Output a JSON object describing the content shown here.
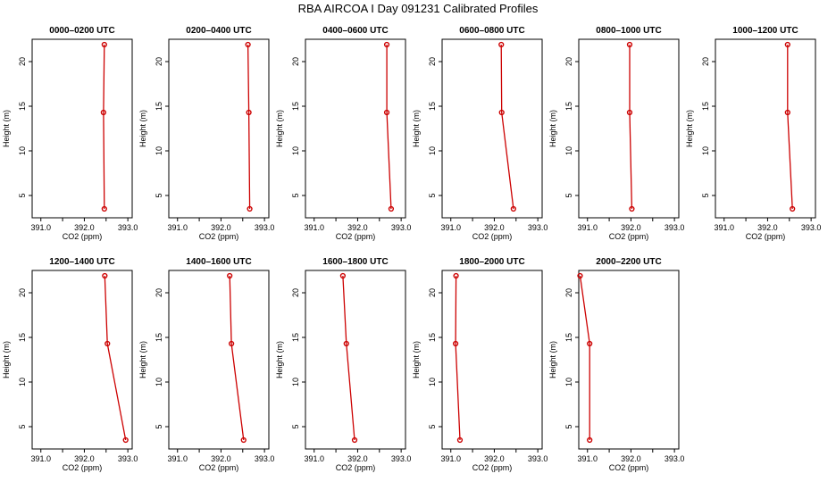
{
  "title": "RBA AIRCOA I  Day 091231  Calibrated Profiles",
  "chart_data": [
    {
      "type": "line",
      "title": "0000–0200 UTC",
      "xlabel": "CO2 (ppm)",
      "ylabel": "Height (m)",
      "x": [
        392.46,
        392.44,
        392.46
      ],
      "y": [
        3.5,
        14.3,
        21.9
      ],
      "xlim": [
        390.8,
        393.1
      ],
      "ylim": [
        2.5,
        22.5
      ],
      "xticks": [
        "391.0",
        "392.0",
        "393.0"
      ],
      "yticks": [
        "5",
        "10",
        "15",
        "20"
      ]
    },
    {
      "type": "line",
      "title": "0200–0400 UTC",
      "xlabel": "CO2 (ppm)",
      "ylabel": "Height (m)",
      "x": [
        392.66,
        392.64,
        392.62
      ],
      "y": [
        3.5,
        14.3,
        21.9
      ],
      "xlim": [
        390.8,
        393.1
      ],
      "ylim": [
        2.5,
        22.5
      ],
      "xticks": [
        "391.0",
        "392.0",
        "393.0"
      ],
      "yticks": [
        "5",
        "10",
        "15",
        "20"
      ]
    },
    {
      "type": "line",
      "title": "0400–0600 UTC",
      "xlabel": "CO2 (ppm)",
      "ylabel": "Height (m)",
      "x": [
        392.77,
        392.67,
        392.67
      ],
      "y": [
        3.5,
        14.3,
        21.9
      ],
      "xlim": [
        390.8,
        393.1
      ],
      "ylim": [
        2.5,
        22.5
      ],
      "xticks": [
        "391.0",
        "392.0",
        "393.0"
      ],
      "yticks": [
        "5",
        "10",
        "15",
        "20"
      ]
    },
    {
      "type": "line",
      "title": "0600–0800 UTC",
      "xlabel": "CO2 (ppm)",
      "ylabel": "Height (m)",
      "x": [
        392.44,
        392.17,
        392.16
      ],
      "y": [
        3.5,
        14.3,
        21.9
      ],
      "xlim": [
        390.8,
        393.1
      ],
      "ylim": [
        2.5,
        22.5
      ],
      "xticks": [
        "391.0",
        "392.0",
        "393.0"
      ],
      "yticks": [
        "5",
        "10",
        "15",
        "20"
      ]
    },
    {
      "type": "line",
      "title": "0800–1000 UTC",
      "xlabel": "CO2 (ppm)",
      "ylabel": "Height (m)",
      "x": [
        392.02,
        391.97,
        391.97
      ],
      "y": [
        3.5,
        14.3,
        21.9
      ],
      "xlim": [
        390.8,
        393.1
      ],
      "ylim": [
        2.5,
        22.5
      ],
      "xticks": [
        "391.0",
        "392.0",
        "393.0"
      ],
      "yticks": [
        "5",
        "10",
        "15",
        "20"
      ]
    },
    {
      "type": "line",
      "title": "1000–1200 UTC",
      "xlabel": "CO2 (ppm)",
      "ylabel": "Height (m)",
      "x": [
        392.57,
        392.46,
        392.46
      ],
      "y": [
        3.5,
        14.3,
        21.9
      ],
      "xlim": [
        390.8,
        393.1
      ],
      "ylim": [
        2.5,
        22.5
      ],
      "xticks": [
        "391.0",
        "392.0",
        "393.0"
      ],
      "yticks": [
        "5",
        "10",
        "15",
        "20"
      ]
    },
    {
      "type": "line",
      "title": "1200–1400 UTC",
      "xlabel": "CO2 (ppm)",
      "ylabel": "Height (m)",
      "x": [
        392.95,
        392.53,
        392.47
      ],
      "y": [
        3.5,
        14.3,
        21.9
      ],
      "xlim": [
        390.8,
        393.1
      ],
      "ylim": [
        2.5,
        22.5
      ],
      "xticks": [
        "391.0",
        "392.0",
        "393.0"
      ],
      "yticks": [
        "5",
        "10",
        "15",
        "20"
      ]
    },
    {
      "type": "line",
      "title": "1400–1600 UTC",
      "xlabel": "CO2 (ppm)",
      "ylabel": "Height (m)",
      "x": [
        392.52,
        392.24,
        392.2
      ],
      "y": [
        3.5,
        14.3,
        21.9
      ],
      "xlim": [
        390.8,
        393.1
      ],
      "ylim": [
        2.5,
        22.5
      ],
      "xticks": [
        "391.0",
        "392.0",
        "393.0"
      ],
      "yticks": [
        "5",
        "10",
        "15",
        "20"
      ]
    },
    {
      "type": "line",
      "title": "1600–1800 UTC",
      "xlabel": "CO2 (ppm)",
      "ylabel": "Height (m)",
      "x": [
        391.93,
        391.74,
        391.66
      ],
      "y": [
        3.5,
        14.3,
        21.9
      ],
      "xlim": [
        390.8,
        393.1
      ],
      "ylim": [
        2.5,
        22.5
      ],
      "xticks": [
        "391.0",
        "392.0",
        "393.0"
      ],
      "yticks": [
        "5",
        "10",
        "15",
        "20"
      ]
    },
    {
      "type": "line",
      "title": "1800–2000 UTC",
      "xlabel": "CO2 (ppm)",
      "ylabel": "Height (m)",
      "x": [
        391.21,
        391.11,
        391.12
      ],
      "y": [
        3.5,
        14.3,
        21.9
      ],
      "xlim": [
        390.8,
        393.1
      ],
      "ylim": [
        2.5,
        22.5
      ],
      "xticks": [
        "391.0",
        "392.0",
        "393.0"
      ],
      "yticks": [
        "5",
        "10",
        "15",
        "20"
      ]
    },
    {
      "type": "line",
      "title": "2000–2200 UTC",
      "xlabel": "CO2 (ppm)",
      "ylabel": "Height (m)",
      "x": [
        391.05,
        391.05,
        390.83
      ],
      "y": [
        3.5,
        14.3,
        21.9
      ],
      "xlim": [
        390.8,
        393.1
      ],
      "ylim": [
        2.5,
        22.5
      ],
      "xticks": [
        "391.0",
        "392.0",
        "393.0"
      ],
      "yticks": [
        "5",
        "10",
        "15",
        "20"
      ]
    }
  ],
  "colors": {
    "line": "#cc0000",
    "axis": "#000000",
    "background": "#ffffff"
  }
}
